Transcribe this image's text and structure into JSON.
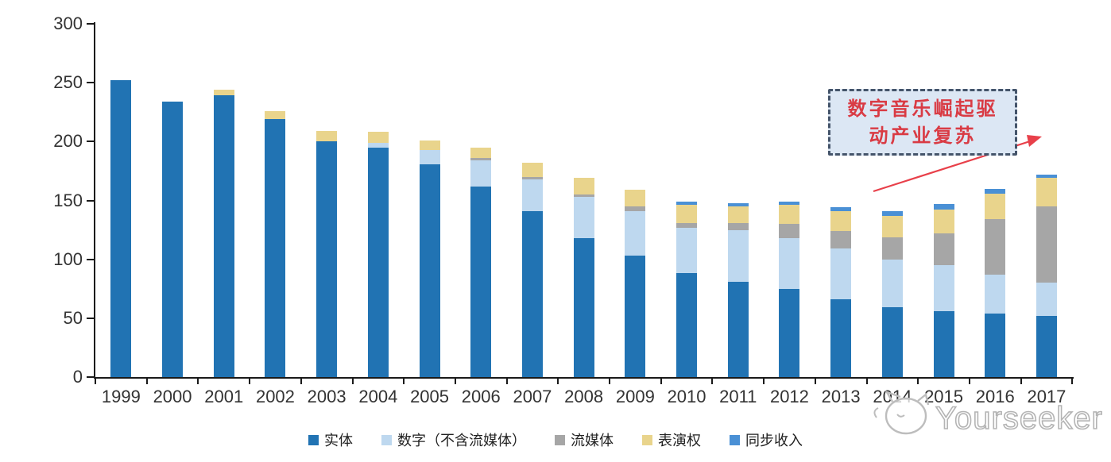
{
  "annotation": {
    "line1": "数字音乐崛起驱",
    "line2": "动产业复苏",
    "text_color": "#d93b44",
    "box_fill": "#dce7f4",
    "box_border": "#44546a",
    "arrow_color": "#e8404a"
  },
  "watermark": {
    "text": "Yourseeker",
    "logo": "yourseeker-cat-logo",
    "color": "#b4b4b4"
  },
  "axis_colors": {
    "spine": "#1a1a1a",
    "tick_label": "#333333"
  },
  "chart_data": {
    "type": "bar",
    "stacked": true,
    "title": "",
    "xlabel": "",
    "ylabel": "",
    "grid": false,
    "legend_position": "bottom",
    "ylim": [
      0,
      300
    ],
    "yticks": [
      0,
      50,
      100,
      150,
      200,
      250,
      300
    ],
    "categories": [
      "1999",
      "2000",
      "2001",
      "2002",
      "2003",
      "2004",
      "2005",
      "2006",
      "2007",
      "2008",
      "2009",
      "2010",
      "2011",
      "2012",
      "2013",
      "2014",
      "2015",
      "2016",
      "2017"
    ],
    "series": [
      {
        "name": "实体",
        "color": "#2173b3",
        "values": [
          252,
          234,
          239,
          219,
          200,
          195,
          181,
          162,
          141,
          118,
          103,
          88,
          81,
          75,
          66,
          59,
          56,
          54,
          52
        ]
      },
      {
        "name": "数字（不含流媒体）",
        "color": "#bed8ef",
        "values": [
          0,
          0,
          0,
          0,
          0,
          4,
          12,
          22,
          27,
          35,
          38,
          39,
          44,
          43,
          43,
          41,
          39,
          33,
          28
        ]
      },
      {
        "name": "流媒体",
        "color": "#a6a6a6",
        "values": [
          0,
          0,
          0,
          0,
          0,
          0,
          0,
          2,
          2,
          2,
          4,
          4,
          6,
          12,
          15,
          19,
          27,
          47,
          65
        ]
      },
      {
        "name": "表演权",
        "color": "#e9d48c",
        "values": [
          0,
          0,
          5,
          7,
          9,
          9,
          8,
          9,
          12,
          14,
          14,
          15,
          14,
          16,
          17,
          18,
          20,
          22,
          24
        ]
      },
      {
        "name": "同步收入",
        "color": "#4a90d5",
        "values": [
          0,
          0,
          0,
          0,
          0,
          0,
          0,
          0,
          0,
          0,
          0,
          3,
          3,
          3,
          3,
          4,
          5,
          4,
          3
        ]
      }
    ]
  }
}
